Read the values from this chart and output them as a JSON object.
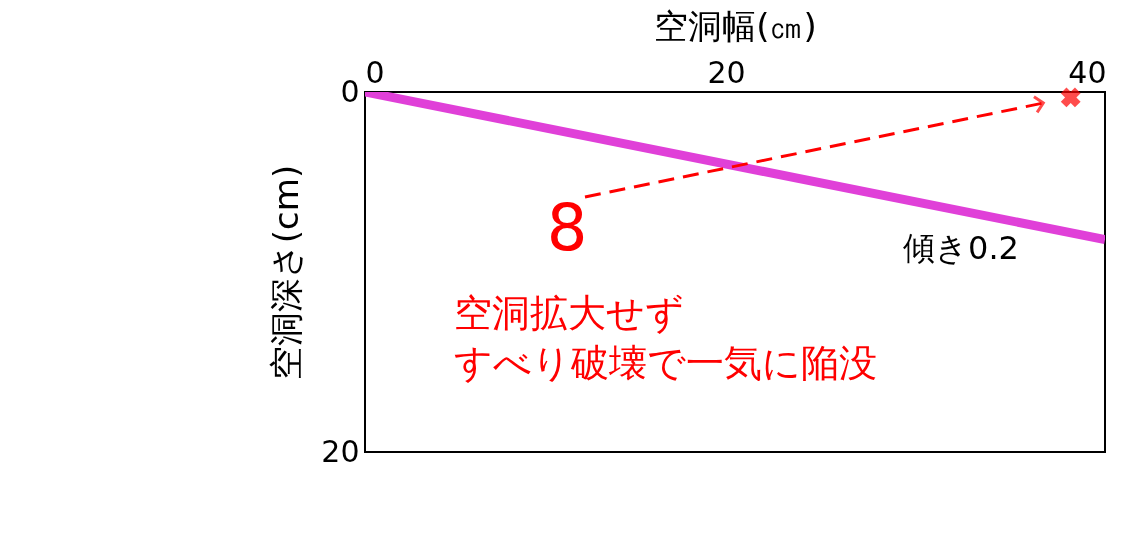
{
  "chart_data": {
    "type": "line",
    "xlabel": "空洞幅(㎝)",
    "ylabel": "空洞深さ(cm)",
    "xlim": [
      0,
      41
    ],
    "xticks": [
      0,
      20,
      40
    ],
    "ylim": [
      20,
      0
    ],
    "yticks": [
      0,
      20
    ],
    "grid": false,
    "series": [
      {
        "color": "#e040d8",
        "x": [
          0,
          41
        ],
        "values": [
          0,
          8.2
        ]
      },
      {
        "type": "scatter",
        "marker": "cross",
        "color": "#ff0000",
        "x": [
          39.1
        ],
        "values": [
          0.3
        ]
      }
    ],
    "annotations": [
      "傾き0.2",
      "8",
      "空洞拡大せず",
      "すべり破壊で一気に陥没"
    ]
  }
}
